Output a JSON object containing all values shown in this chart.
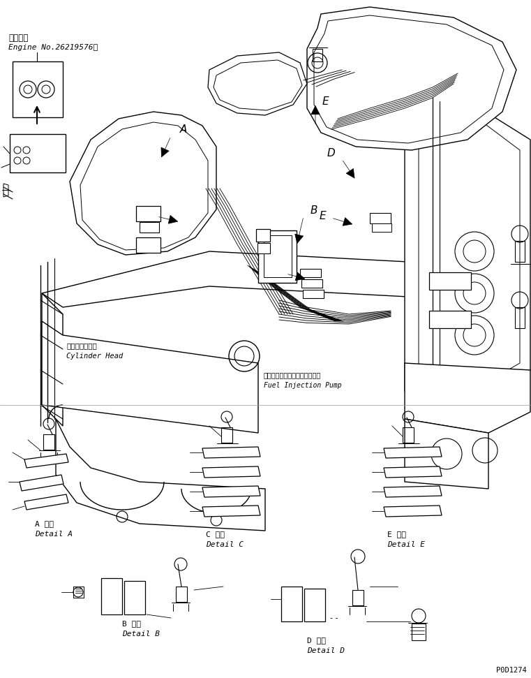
{
  "background_color": "#ffffff",
  "line_color": "#000000",
  "fig_width": 7.61,
  "fig_height": 9.71,
  "dpi": 100,
  "header_text1": "適用号機",
  "header_text2": "Engine No.26219576～",
  "cylinder_head_ja": "シリンダヘッド",
  "cylinder_head_en": "Cylinder Head",
  "pump_ja": "フェルインジェクションポンプ",
  "pump_en": "Fuel Injection Pump",
  "detail_A_ja": "A 詳細",
  "detail_A_en": "Detail A",
  "detail_B_ja": "B 詳細",
  "detail_B_en": "Detail B",
  "detail_C_ja": "C 詳細",
  "detail_C_en": "Detail C",
  "detail_D_ja": "D 詳細",
  "detail_D_en": "Detail D",
  "detail_E_ja": "E 詳細",
  "detail_E_en": "Detail E",
  "part_number": "P0D1274"
}
